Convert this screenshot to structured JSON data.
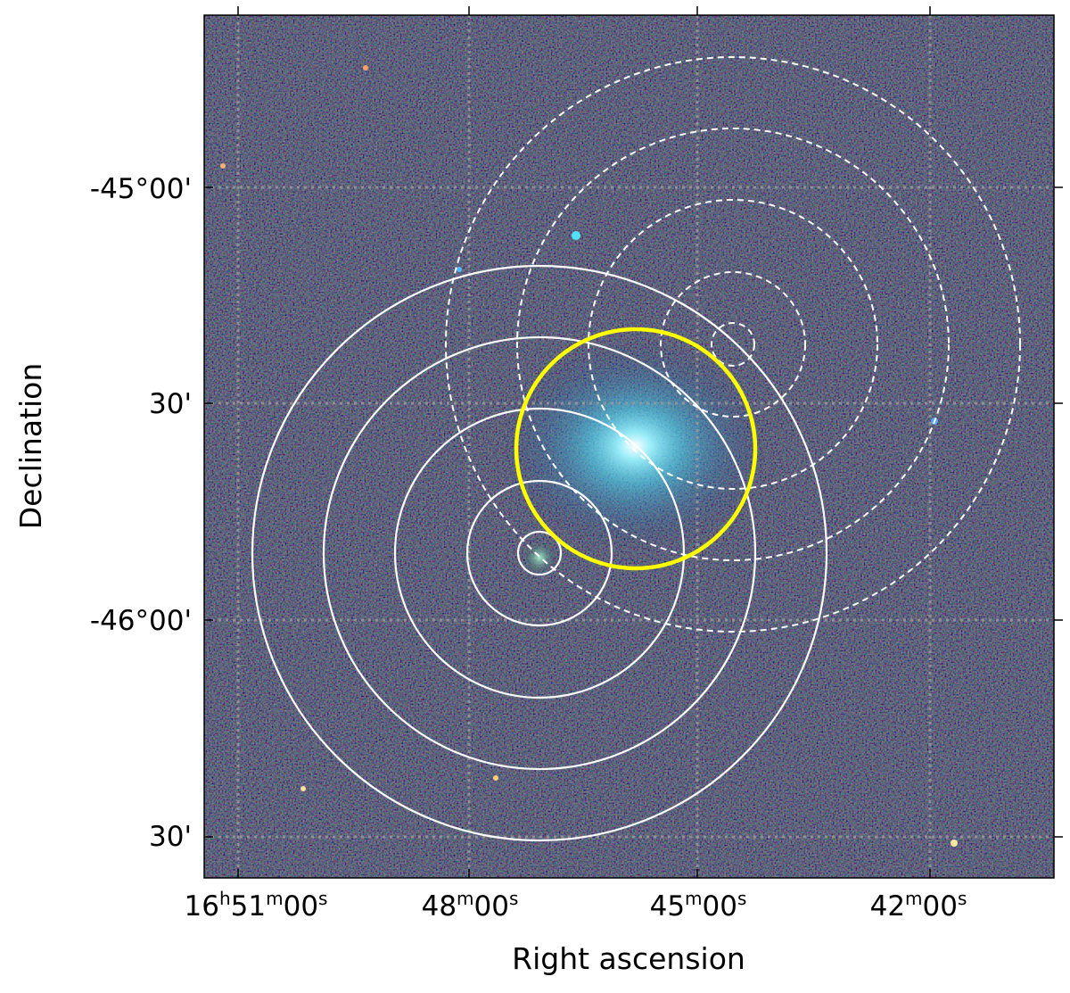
{
  "figure": {
    "xlabel": "Right ascension",
    "ylabel": "Declination",
    "x_ticks": [
      {
        "h": "16",
        "m": "51",
        "s": "00"
      },
      {
        "h": "",
        "m": "48",
        "s": "00"
      },
      {
        "h": "",
        "m": "45",
        "s": "00"
      },
      {
        "h": "",
        "m": "42",
        "s": "00"
      }
    ],
    "y_ticks": [
      "-45°00'",
      "30'",
      "-46°00'",
      "30'"
    ],
    "grid": "dotted",
    "colors": {
      "sky_background": "#141a33",
      "grid": "#9a9a9a",
      "highlight_circle": "#ffff00",
      "circles": "#ffffff",
      "source_glow": "#63e5ff"
    },
    "circle_groups": [
      {
        "style": "solid",
        "count": 5
      },
      {
        "style": "dashed",
        "count": 5
      },
      {
        "style": "highlight",
        "count": 1
      }
    ]
  }
}
